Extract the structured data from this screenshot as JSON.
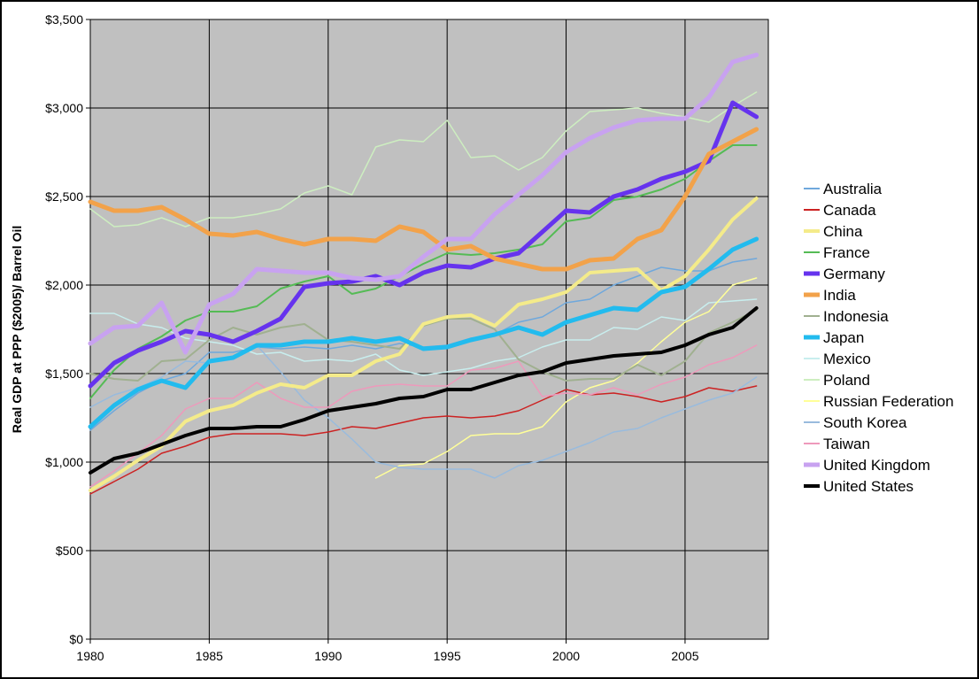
{
  "chart_data": {
    "type": "line",
    "title": "",
    "xlabel": "",
    "ylabel": "Real GDP at PPP ($2005)/ Barrel Oil",
    "xlim": [
      1980,
      2008.5
    ],
    "ylim": [
      0,
      3500
    ],
    "x_ticks": [
      1980,
      1985,
      1990,
      1995,
      2000,
      2005
    ],
    "x_tick_labels": [
      "1980",
      "1985",
      "1990",
      "1995",
      "2000",
      "2005"
    ],
    "y_ticks": [
      0,
      500,
      1000,
      1500,
      2000,
      2500,
      3000,
      3500
    ],
    "y_tick_labels": [
      "$0",
      "$500",
      "$1,000",
      "$1,500",
      "$2,000",
      "$2,500",
      "$3,000",
      "$3,500"
    ],
    "grid": true,
    "plot_background": "#c0c0c0",
    "legend_position": "right",
    "series": [
      {
        "name": "Australia",
        "color": "#6fa8dc",
        "width": 1.5,
        "start": 1980,
        "values": [
          1180,
          1290,
          1390,
          1460,
          1500,
          1620,
          1620,
          1650,
          1640,
          1650,
          1640,
          1660,
          1640,
          1670,
          1650,
          1660,
          1700,
          1720,
          1790,
          1820,
          1900,
          1920,
          2000,
          2050,
          2100,
          2080,
          2080,
          2130,
          2150
        ]
      },
      {
        "name": "Canada",
        "color": "#cc2222",
        "width": 1.5,
        "start": 1980,
        "values": [
          820,
          890,
          960,
          1050,
          1090,
          1140,
          1160,
          1160,
          1160,
          1150,
          1170,
          1200,
          1190,
          1220,
          1250,
          1260,
          1250,
          1260,
          1290,
          1350,
          1410,
          1380,
          1390,
          1370,
          1340,
          1370,
          1420,
          1400,
          1430
        ]
      },
      {
        "name": "China",
        "color": "#f4eb8a",
        "width": 4,
        "start": 1980,
        "values": [
          840,
          920,
          1010,
          1090,
          1230,
          1290,
          1320,
          1390,
          1440,
          1420,
          1490,
          1490,
          1570,
          1610,
          1780,
          1820,
          1830,
          1770,
          1890,
          1920,
          1960,
          2070,
          2080,
          2090,
          1970,
          2050,
          2200,
          2370,
          2490
        ]
      },
      {
        "name": "France",
        "color": "#55bb55",
        "width": 2,
        "start": 1980,
        "values": [
          1360,
          1520,
          1640,
          1710,
          1800,
          1850,
          1850,
          1880,
          1980,
          2020,
          2050,
          1950,
          1980,
          2050,
          2120,
          2180,
          2170,
          2180,
          2200,
          2230,
          2360,
          2380,
          2480,
          2500,
          2540,
          2600,
          2700,
          2790,
          2790
        ]
      },
      {
        "name": "Germany",
        "color": "#6633ee",
        "width": 5,
        "start": 1980,
        "values": [
          1430,
          1560,
          1630,
          1680,
          1740,
          1720,
          1680,
          1740,
          1810,
          1990,
          2010,
          2020,
          2050,
          2000,
          2070,
          2110,
          2100,
          2150,
          2180,
          2300,
          2420,
          2410,
          2500,
          2540,
          2600,
          2640,
          2700,
          3030,
          2950
        ]
      },
      {
        "name": "India",
        "color": "#f2a24a",
        "width": 5,
        "start": 1980,
        "values": [
          2470,
          2420,
          2420,
          2440,
          2370,
          2290,
          2280,
          2300,
          2260,
          2230,
          2260,
          2260,
          2250,
          2330,
          2300,
          2200,
          2220,
          2150,
          2120,
          2090,
          2090,
          2140,
          2150,
          2260,
          2310,
          2500,
          2740,
          2810,
          2880
        ]
      },
      {
        "name": "Indonesia",
        "color": "#a0b090",
        "width": 2,
        "start": 1980,
        "values": [
          1500,
          1470,
          1460,
          1570,
          1580,
          1690,
          1760,
          1720,
          1760,
          1780,
          1690,
          1680,
          1660,
          1640,
          1770,
          1810,
          1810,
          1750,
          1580,
          1510,
          1460,
          1470,
          1470,
          1550,
          1490,
          1570,
          1730,
          1790,
          1860
        ]
      },
      {
        "name": "Japan",
        "color": "#22bbee",
        "width": 5,
        "start": 1980,
        "values": [
          1200,
          1320,
          1410,
          1460,
          1420,
          1570,
          1590,
          1660,
          1660,
          1680,
          1680,
          1700,
          1680,
          1700,
          1640,
          1650,
          1690,
          1720,
          1760,
          1720,
          1790,
          1830,
          1870,
          1860,
          1960,
          1990,
          2090,
          2200,
          2260
        ]
      },
      {
        "name": "Mexico",
        "color": "#c8eeee",
        "width": 1.5,
        "start": 1980,
        "values": [
          1840,
          1840,
          1780,
          1760,
          1700,
          1680,
          1660,
          1610,
          1620,
          1570,
          1580,
          1570,
          1610,
          1520,
          1490,
          1510,
          1530,
          1570,
          1590,
          1650,
          1690,
          1690,
          1760,
          1750,
          1820,
          1800,
          1900,
          1910,
          1920
        ]
      },
      {
        "name": "Poland",
        "color": "#cdeec0",
        "width": 1.5,
        "start": 1980,
        "values": [
          2430,
          2330,
          2340,
          2380,
          2330,
          2380,
          2380,
          2400,
          2430,
          2520,
          2560,
          2510,
          2780,
          2820,
          2810,
          2930,
          2720,
          2730,
          2650,
          2720,
          2870,
          2980,
          2990,
          3000,
          2970,
          2950,
          2920,
          3010,
          3090
        ]
      },
      {
        "name": "Russian Federation",
        "color": "#ffff99",
        "width": 1.5,
        "start": 1992,
        "values": [
          910,
          980,
          990,
          1060,
          1150,
          1160,
          1160,
          1200,
          1340,
          1420,
          1460,
          1560,
          1680,
          1790,
          1850,
          2000,
          2040
        ]
      },
      {
        "name": "South Korea",
        "color": "#99bbdd",
        "width": 1.5,
        "start": 1980,
        "values": [
          1310,
          1380,
          1420,
          1480,
          1570,
          1560,
          1580,
          1660,
          1510,
          1350,
          1250,
          1130,
          1000,
          970,
          960,
          960,
          960,
          910,
          980,
          1010,
          1060,
          1110,
          1170,
          1190,
          1250,
          1300,
          1350,
          1390,
          1480
        ]
      },
      {
        "name": "Taiwan",
        "color": "#ee99bb",
        "width": 1.5,
        "start": 1980,
        "values": [
          860,
          950,
          1050,
          1150,
          1300,
          1360,
          1360,
          1450,
          1360,
          1310,
          1310,
          1400,
          1430,
          1440,
          1430,
          1430,
          1520,
          1530,
          1570,
          1370,
          1390,
          1380,
          1420,
          1380,
          1440,
          1480,
          1550,
          1590,
          1660
        ]
      },
      {
        "name": "United Kingdom",
        "color": "#c8a2f0",
        "width": 5,
        "start": 1980,
        "values": [
          1670,
          1760,
          1770,
          1900,
          1620,
          1890,
          1950,
          2090,
          2080,
          2070,
          2070,
          2040,
          2030,
          2050,
          2160,
          2260,
          2260,
          2400,
          2510,
          2620,
          2750,
          2830,
          2890,
          2930,
          2940,
          2940,
          3060,
          3260,
          3300
        ]
      },
      {
        "name": "United States",
        "color": "#000000",
        "width": 4,
        "start": 1980,
        "values": [
          940,
          1020,
          1050,
          1100,
          1150,
          1190,
          1190,
          1200,
          1200,
          1240,
          1290,
          1310,
          1330,
          1360,
          1370,
          1410,
          1410,
          1450,
          1490,
          1510,
          1560,
          1580,
          1600,
          1610,
          1620,
          1660,
          1720,
          1760,
          1870
        ]
      }
    ]
  }
}
